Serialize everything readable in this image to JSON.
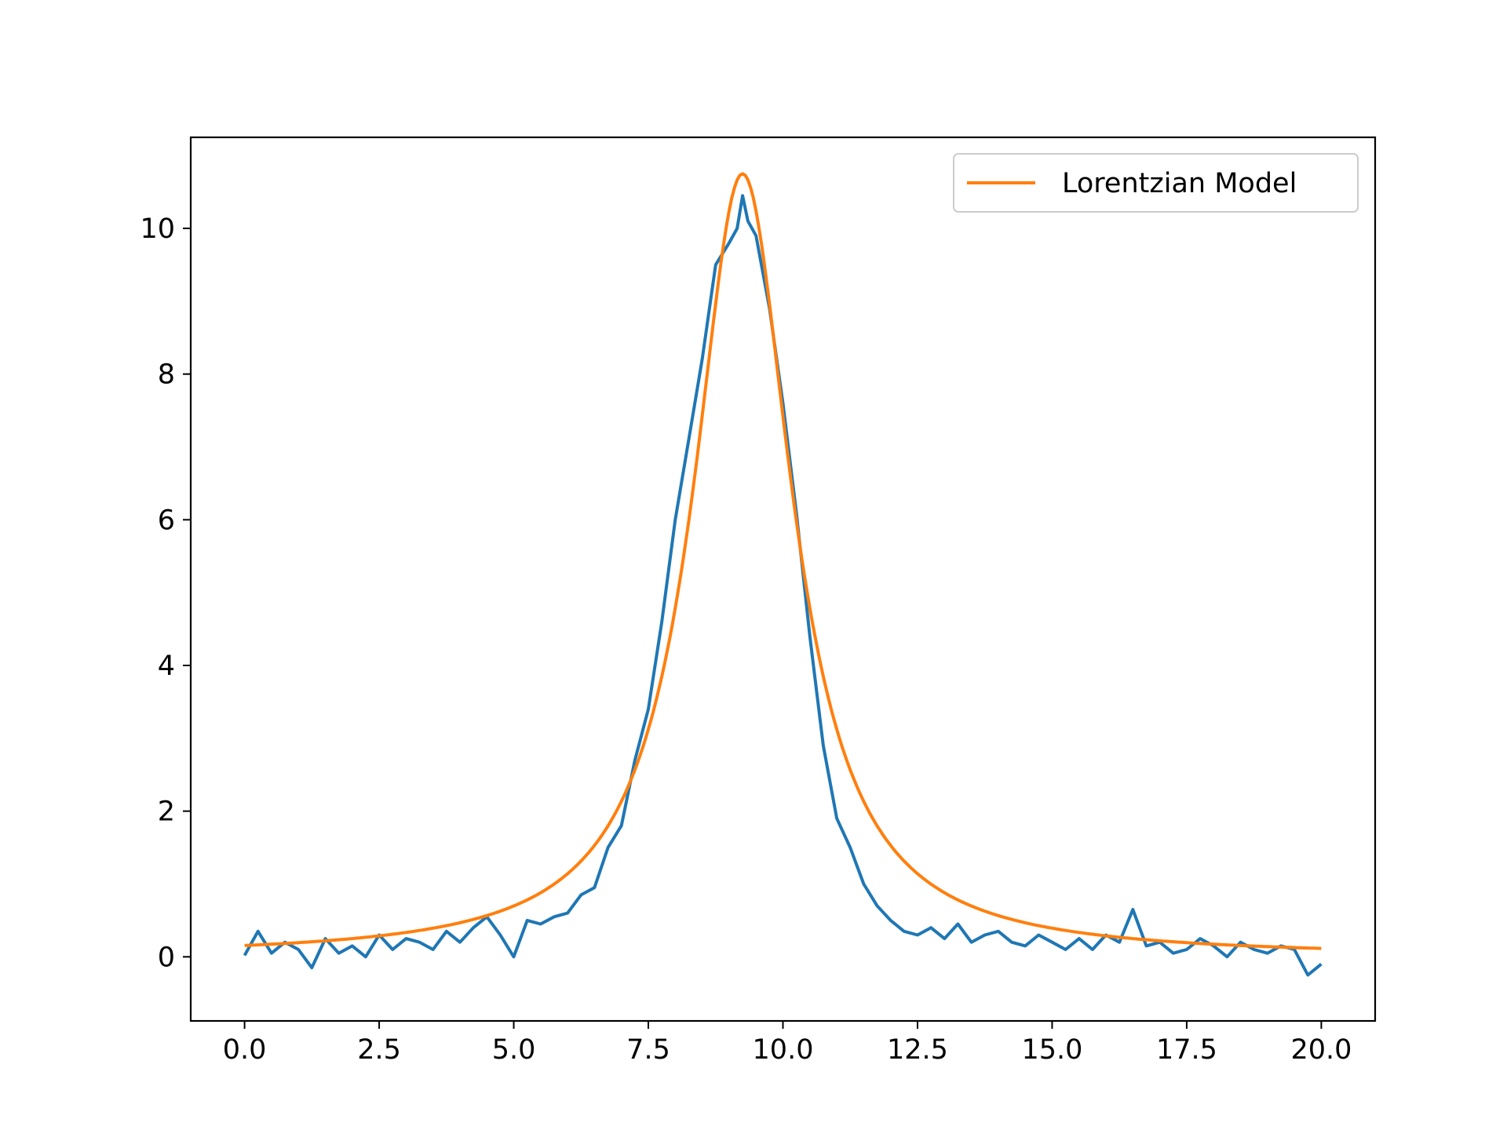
{
  "chart_data": {
    "type": "line",
    "title": "",
    "xlabel": "",
    "ylabel": "",
    "xlim": [
      -1.0,
      21.0
    ],
    "ylim": [
      -0.88,
      11.25
    ],
    "xticks": [
      0.0,
      2.5,
      5.0,
      7.5,
      10.0,
      12.5,
      15.0,
      17.5,
      20.0
    ],
    "xtick_labels": [
      "0.0",
      "2.5",
      "5.0",
      "7.5",
      "10.0",
      "12.5",
      "15.0",
      "17.5",
      "20.0"
    ],
    "yticks": [
      0,
      2,
      4,
      6,
      8,
      10
    ],
    "ytick_labels": [
      "0",
      "2",
      "4",
      "6",
      "8",
      "10"
    ],
    "grid": false,
    "legend_position": "upper right",
    "series": [
      {
        "color": "#1f77b4",
        "style": "noisy data",
        "x": [
          0.0,
          0.25,
          0.5,
          0.75,
          1.0,
          1.25,
          1.5,
          1.75,
          2.0,
          2.25,
          2.5,
          2.75,
          3.0,
          3.25,
          3.5,
          3.75,
          4.0,
          4.25,
          4.5,
          4.75,
          5.0,
          5.25,
          5.5,
          5.75,
          6.0,
          6.25,
          6.5,
          6.75,
          7.0,
          7.25,
          7.5,
          7.75,
          8.0,
          8.25,
          8.5,
          8.75,
          9.0,
          9.15,
          9.25,
          9.35,
          9.5,
          9.75,
          10.0,
          10.25,
          10.5,
          10.75,
          11.0,
          11.25,
          11.5,
          11.75,
          12.0,
          12.25,
          12.5,
          12.75,
          13.0,
          13.25,
          13.5,
          13.75,
          14.0,
          14.25,
          14.5,
          14.75,
          15.0,
          15.25,
          15.5,
          15.75,
          16.0,
          16.25,
          16.5,
          16.75,
          17.0,
          17.25,
          17.5,
          17.75,
          18.0,
          18.25,
          18.5,
          18.75,
          19.0,
          19.25,
          19.5,
          19.75,
          20.0
        ],
        "y": [
          0.02,
          0.35,
          0.05,
          0.2,
          0.1,
          -0.15,
          0.25,
          0.05,
          0.15,
          0.0,
          0.3,
          0.1,
          0.25,
          0.2,
          0.1,
          0.35,
          0.2,
          0.4,
          0.55,
          0.3,
          0.0,
          0.5,
          0.45,
          0.55,
          0.6,
          0.85,
          0.95,
          1.5,
          1.8,
          2.7,
          3.4,
          4.6,
          6.0,
          7.1,
          8.2,
          9.5,
          9.8,
          10.0,
          10.45,
          10.1,
          9.9,
          8.9,
          7.6,
          6.1,
          4.4,
          2.9,
          1.9,
          1.5,
          1.0,
          0.7,
          0.5,
          0.35,
          0.3,
          0.4,
          0.25,
          0.45,
          0.2,
          0.3,
          0.35,
          0.2,
          0.15,
          0.3,
          0.2,
          0.1,
          0.25,
          0.1,
          0.3,
          0.2,
          0.65,
          0.15,
          0.2,
          0.05,
          0.1,
          0.25,
          0.15,
          0.0,
          0.2,
          0.1,
          0.05,
          0.15,
          0.1,
          -0.25,
          -0.1
        ]
      },
      {
        "name": "Lorentzian Model",
        "color": "#ff7f0e",
        "model": "lorentzian",
        "params": {
          "amplitude": 10.75,
          "center": 9.25,
          "hwhm": 1.12
        },
        "x": [
          0.0,
          1.0,
          2.0,
          3.0,
          4.0,
          5.0,
          6.0,
          7.0,
          7.5,
          8.0,
          8.5,
          9.0,
          9.25,
          9.5,
          10.0,
          10.5,
          11.0,
          11.5,
          12.0,
          13.0,
          14.0,
          15.0,
          16.0,
          17.0,
          18.0,
          19.0,
          20.0
        ],
        "y": [
          0.16,
          0.2,
          0.25,
          0.33,
          0.47,
          0.71,
          1.2,
          2.13,
          3.12,
          4.82,
          7.51,
          10.21,
          10.75,
          10.21,
          7.51,
          4.82,
          3.12,
          2.13,
          1.53,
          0.89,
          0.59,
          0.4,
          0.29,
          0.22,
          0.17,
          0.14,
          0.11
        ]
      }
    ]
  }
}
